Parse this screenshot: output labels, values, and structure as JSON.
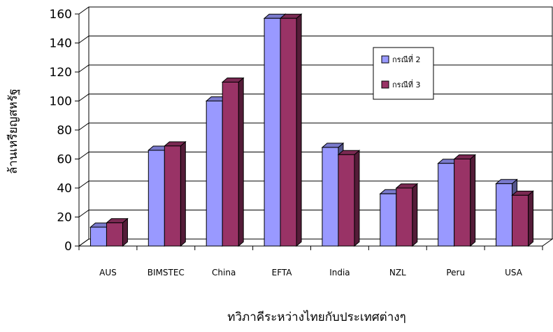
{
  "chart_data": {
    "type": "bar",
    "categories": [
      "AUS",
      "BIMSTEC",
      "China",
      "EFTA",
      "India",
      "NZL",
      "Peru",
      "USA"
    ],
    "series": [
      {
        "name": "กรณีที่ 2",
        "color": "#9999ff",
        "values": [
          13,
          66,
          100,
          157,
          68,
          36,
          57,
          43
        ]
      },
      {
        "name": "กรณีที่ 3",
        "color": "#993366",
        "values": [
          16,
          69,
          113,
          157,
          63,
          40,
          60,
          35
        ]
      }
    ],
    "xlabel": "ทวิภาคีระหว่างไทยกับประเทศต่างๆ",
    "ylabel": "ล้านเหรียญสหรัฐ",
    "ylim": [
      0,
      160
    ],
    "yticks": [
      0,
      20,
      40,
      60,
      80,
      100,
      120,
      140,
      160
    ],
    "grid": true,
    "legend_position": "right"
  }
}
